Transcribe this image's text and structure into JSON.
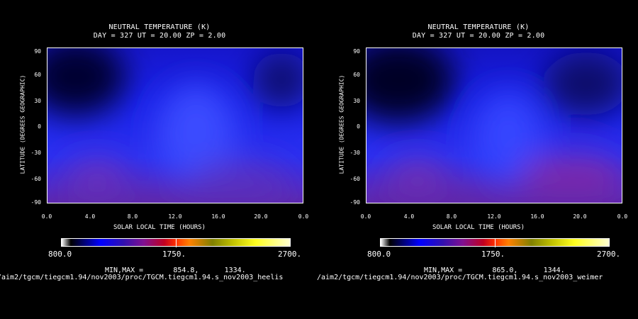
{
  "chart_data": [
    {
      "type": "heatmap",
      "title": "NEUTRAL TEMPERATURE (K)",
      "subtitle": "DAY = 327   UT = 20.00   ZP =    2.00",
      "xlabel": "SOLAR LOCAL TIME (HOURS)",
      "ylabel": "LATITUDE (DEGREES GEOGRAPHIC)",
      "xlim": [
        0,
        24
      ],
      "ylim": [
        -90,
        90
      ],
      "x_tick_labels": [
        "0.0",
        "4.0",
        "8.0",
        "12.0",
        "16.0",
        "20.0",
        "0.0"
      ],
      "y_tick_labels": [
        "90",
        "60",
        "30",
        "0",
        "-30",
        "-60",
        "-90"
      ],
      "colorbar": {
        "min_label": "800.0",
        "mid_label": "1750.",
        "max_label": "2700.",
        "range": [
          800,
          2700
        ]
      },
      "minmax_text": "MIN,MAX =       854.8,      1334.",
      "footer_path": "/aim2/tgcm/tiegcm1.94/nov2003/proc/TGCM.tiegcm1.94.s_nov2003_heelis",
      "min": 854.8,
      "max": 1334,
      "features": [
        {
          "slt": 1.5,
          "lat": 60,
          "value": 860,
          "desc": "cold"
        },
        {
          "slt": 14,
          "lat": -20,
          "value": 1150,
          "desc": "warm"
        },
        {
          "slt": 4.5,
          "lat": -55,
          "value": 1300,
          "desc": "hot"
        },
        {
          "slt": 18,
          "lat": -65,
          "value": 1200,
          "desc": "warm"
        }
      ]
    },
    {
      "type": "heatmap",
      "title": "NEUTRAL TEMPERATURE (K)",
      "subtitle": "DAY = 327   UT = 20.00   ZP =    2.00",
      "xlabel": "SOLAR LOCAL TIME (HOURS)",
      "ylabel": "LATITUDE (DEGREES GEOGRAPHIC)",
      "xlim": [
        0,
        24
      ],
      "ylim": [
        -90,
        90
      ],
      "x_tick_labels": [
        "0.0",
        "4.0",
        "8.0",
        "12.0",
        "16.0",
        "20.0",
        "0.0"
      ],
      "y_tick_labels": [
        "90",
        "60",
        "30",
        "0",
        "-30",
        "-60",
        "-90"
      ],
      "colorbar": {
        "min_label": "800.0",
        "mid_label": "1750.",
        "max_label": "2700.",
        "range": [
          800,
          2700
        ]
      },
      "minmax_text": "MIN,MAX =       865.0,      1344.",
      "footer_path": "/aim2/tgcm/tiegcm1.94/nov2003/proc/TGCM.tiegcm1.94.s_nov2003_weimer",
      "min": 865.0,
      "max": 1344,
      "features": [
        {
          "slt": 1.5,
          "lat": 60,
          "value": 870,
          "desc": "cold"
        },
        {
          "slt": 14,
          "lat": -20,
          "value": 1100,
          "desc": "warm"
        },
        {
          "slt": 4.5,
          "lat": -55,
          "value": 1320,
          "desc": "hot"
        },
        {
          "slt": 19,
          "lat": -62,
          "value": 1290,
          "desc": "hot"
        }
      ]
    }
  ]
}
